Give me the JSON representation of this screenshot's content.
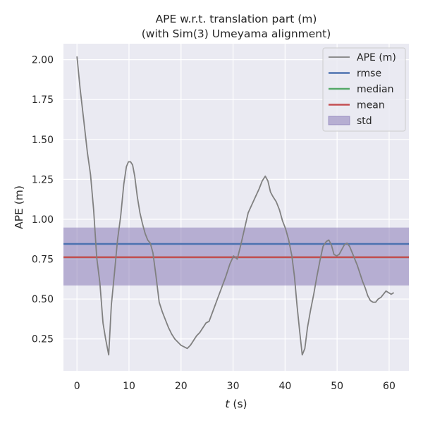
{
  "chart_data": {
    "type": "line",
    "title_line1": "APE w.r.t. translation part (m)",
    "title_line2": "(with Sim(3) Umeyama alignment)",
    "xlabel_var": "t",
    "xlabel_unit": " (s)",
    "ylabel": "APE (m)",
    "xlim": [
      -2.6,
      63.8
    ],
    "ylim": [
      0.05,
      2.1
    ],
    "xticks": [
      0,
      10,
      20,
      30,
      40,
      50,
      60
    ],
    "yticks": [
      0.25,
      0.5,
      0.75,
      1.0,
      1.25,
      1.5,
      1.75,
      2.0
    ],
    "ytick_labels": [
      "0.25",
      "0.50",
      "0.75",
      "1.00",
      "1.25",
      "1.50",
      "1.75",
      "2.00"
    ],
    "grid": true,
    "legend_position": "top-right",
    "colors": {
      "background": "#eaeaf2",
      "grid": "#ffffff",
      "ape": "#808080",
      "rmse": "#4c72b0",
      "median": "#55a868",
      "mean": "#c44e52",
      "std": "#8172b2"
    },
    "stats": {
      "rmse": 0.845,
      "median": 0.762,
      "mean": 0.762,
      "std_lower": 0.585,
      "std_upper": 0.948
    },
    "legend": [
      {
        "key": "ape",
        "label": "APE (m)",
        "kind": "line"
      },
      {
        "key": "rmse",
        "label": "rmse",
        "kind": "line"
      },
      {
        "key": "median",
        "label": "median",
        "kind": "line"
      },
      {
        "key": "mean",
        "label": "mean",
        "kind": "line"
      },
      {
        "key": "std",
        "label": "std",
        "kind": "patch"
      }
    ],
    "series": [
      {
        "name": "APE (m)",
        "x": [
          0,
          0.6,
          1.3,
          2.0,
          2.6,
          3.2,
          3.8,
          4.4,
          5.0,
          5.5,
          6.1,
          6.6,
          7.2,
          7.8,
          8.4,
          9.0,
          9.5,
          9.9,
          10.3,
          10.7,
          11.1,
          11.6,
          12.1,
          12.6,
          13.1,
          13.6,
          14.1,
          14.6,
          15.2,
          15.8,
          16.4,
          17.0,
          17.6,
          18.2,
          18.8,
          19.4,
          20.0,
          20.6,
          21.2,
          21.8,
          22.4,
          23.0,
          23.6,
          24.2,
          24.8,
          25.4,
          26.2,
          27.0,
          27.8,
          28.6,
          29.4,
          30.1,
          30.8,
          31.5,
          32.2,
          32.9,
          33.6,
          34.3,
          35.0,
          35.6,
          36.2,
          36.7,
          37.2,
          37.7,
          38.3,
          38.9,
          39.5,
          40.1,
          40.7,
          41.3,
          41.8,
          42.3,
          42.8,
          43.3,
          43.8,
          44.3,
          44.9,
          45.5,
          46.1,
          46.7,
          47.3,
          47.9,
          48.4,
          48.9,
          49.4,
          49.9,
          50.4,
          50.9,
          51.4,
          51.9,
          52.4,
          52.9,
          53.4,
          53.9,
          54.4,
          54.9,
          55.4,
          55.9,
          56.4,
          56.9,
          57.4,
          57.9,
          58.4,
          58.9,
          59.4,
          59.9,
          60.4,
          60.9
        ],
        "y": [
          2.02,
          1.82,
          1.62,
          1.42,
          1.28,
          1.06,
          0.76,
          0.6,
          0.35,
          0.25,
          0.15,
          0.46,
          0.66,
          0.87,
          1.02,
          1.22,
          1.33,
          1.36,
          1.36,
          1.34,
          1.27,
          1.14,
          1.04,
          0.97,
          0.91,
          0.87,
          0.85,
          0.79,
          0.64,
          0.48,
          0.42,
          0.37,
          0.32,
          0.28,
          0.25,
          0.23,
          0.21,
          0.2,
          0.19,
          0.21,
          0.24,
          0.27,
          0.29,
          0.32,
          0.35,
          0.36,
          0.43,
          0.5,
          0.57,
          0.64,
          0.72,
          0.77,
          0.75,
          0.84,
          0.94,
          1.04,
          1.09,
          1.14,
          1.19,
          1.24,
          1.27,
          1.24,
          1.17,
          1.14,
          1.11,
          1.06,
          0.99,
          0.94,
          0.87,
          0.77,
          0.64,
          0.46,
          0.3,
          0.15,
          0.19,
          0.32,
          0.43,
          0.53,
          0.64,
          0.74,
          0.83,
          0.86,
          0.87,
          0.84,
          0.78,
          0.77,
          0.78,
          0.81,
          0.84,
          0.85,
          0.83,
          0.79,
          0.75,
          0.71,
          0.66,
          0.61,
          0.57,
          0.52,
          0.49,
          0.48,
          0.48,
          0.5,
          0.51,
          0.53,
          0.55,
          0.54,
          0.53,
          0.54
        ]
      }
    ]
  }
}
